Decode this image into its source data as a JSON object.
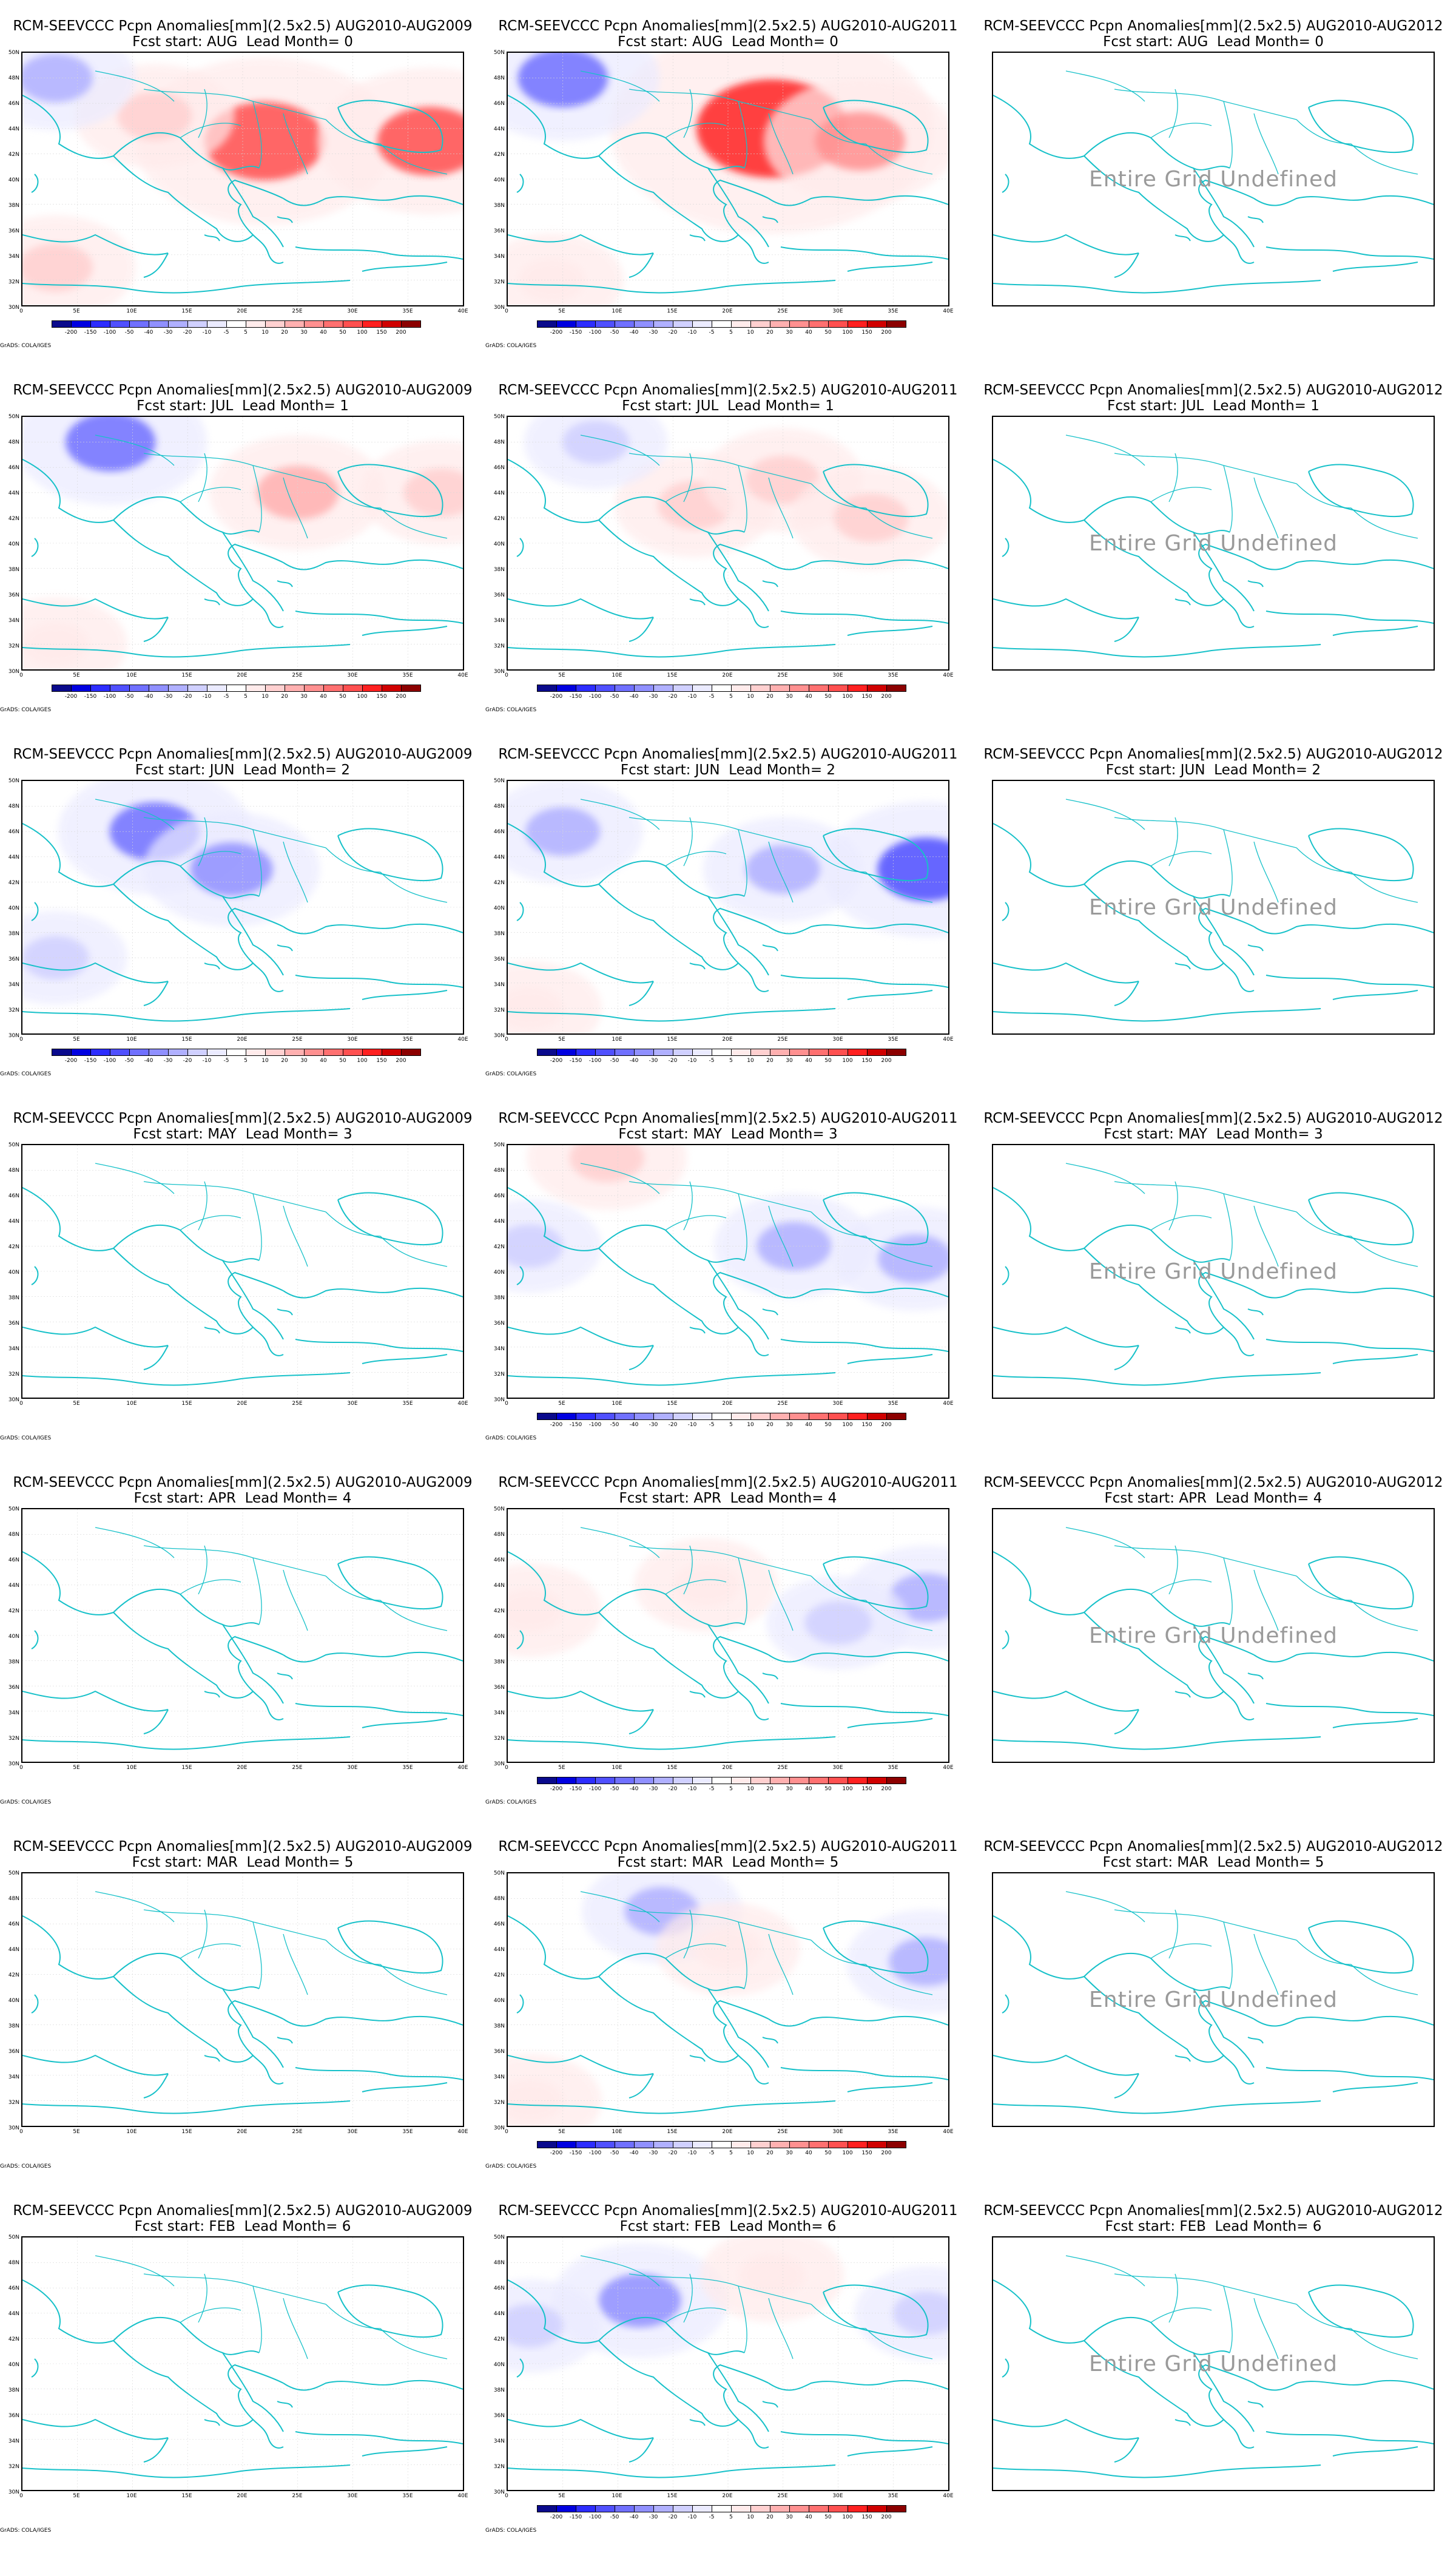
{
  "page": {
    "grads_credit": "GrADS: COLA/IGES"
  },
  "map": {
    "lat_labels": [
      "50N",
      "48N",
      "46N",
      "44N",
      "42N",
      "40N",
      "38N",
      "36N",
      "34N",
      "32N",
      "30N"
    ],
    "lon_labels": [
      "0",
      "5E",
      "10E",
      "15E",
      "20E",
      "25E",
      "30E",
      "35E",
      "40E"
    ],
    "lat_range": [
      30,
      50
    ],
    "lon_range": [
      0,
      40
    ],
    "coast_color": "#17c1c9",
    "undefined_text": "Entire Grid Undefined"
  },
  "colorbar": {
    "labels": [
      "-200",
      "-150",
      "-100",
      "-50",
      "-40",
      "-30",
      "-20",
      "-10",
      "-5",
      "5",
      "10",
      "20",
      "30",
      "40",
      "50",
      "100",
      "150",
      "200"
    ],
    "colors": [
      "#0a0a8c",
      "#0000e0",
      "#2d2dff",
      "#5050ff",
      "#7070ff",
      "#9090ff",
      "#b0b0ff",
      "#d0d0ff",
      "#ebebff",
      "#ffffff",
      "#ffebeb",
      "#ffd0d0",
      "#ffb0b0",
      "#ff9090",
      "#ff7070",
      "#ff5050",
      "#ff2020",
      "#d00000",
      "#8c0000"
    ]
  },
  "rows": [
    {
      "start": "AUG",
      "lead": "0"
    },
    {
      "start": "JUL",
      "lead": "1"
    },
    {
      "start": "JUN",
      "lead": "2"
    },
    {
      "start": "MAY",
      "lead": "3"
    },
    {
      "start": "APR",
      "lead": "4"
    },
    {
      "start": "MAR",
      "lead": "5"
    },
    {
      "start": "FEB",
      "lead": "6"
    }
  ],
  "columns": [
    {
      "comparison": "AUG2010-AUG2009"
    },
    {
      "comparison": "AUG2010-AUG2011"
    },
    {
      "comparison": "AUG2010-AUG2012"
    }
  ],
  "panels": [
    {
      "title1": "RCM-SEEVCCC Pcpn Anomalies[mm](2.5x2.5) AUG2010-AUG2009",
      "title2": "Fcst start: AUG  Lead Month= 0",
      "undefined": false,
      "has_colorbar": true,
      "anomalies": [
        {
          "lon": 22,
          "lat": 43,
          "value": 80
        },
        {
          "lon": 37,
          "lat": 43,
          "value": 60
        },
        {
          "lon": 12,
          "lat": 45,
          "value": 20
        },
        {
          "lon": 3,
          "lat": 33,
          "value": 20
        },
        {
          "lon": 3,
          "lat": 48,
          "value": -20
        }
      ]
    },
    {
      "title1": "RCM-SEEVCCC Pcpn Anomalies[mm](2.5x2.5) AUG2010-AUG2011",
      "title2": "Fcst start: AUG  Lead Month= 0",
      "undefined": false,
      "has_colorbar": true,
      "anomalies": [
        {
          "lon": 24,
          "lat": 44,
          "value": 120
        },
        {
          "lon": 32,
          "lat": 43,
          "value": 40
        },
        {
          "lon": 5,
          "lat": 48,
          "value": -40
        },
        {
          "lon": 4,
          "lat": 32,
          "value": 10
        }
      ]
    },
    {
      "title1": "RCM-SEEVCCC Pcpn Anomalies[mm](2.5x2.5) AUG2010-AUG2012",
      "title2": "Fcst start: AUG  Lead Month= 0",
      "undefined": true,
      "has_colorbar": false,
      "anomalies": []
    },
    {
      "title1": "RCM-SEEVCCC Pcpn Anomalies[mm](2.5x2.5) AUG2010-AUG2009",
      "title2": "Fcst start: JUL  Lead Month= 1",
      "undefined": false,
      "has_colorbar": true,
      "anomalies": [
        {
          "lon": 8,
          "lat": 48,
          "value": -40
        },
        {
          "lon": 25,
          "lat": 44,
          "value": 30
        },
        {
          "lon": 38,
          "lat": 44,
          "value": 20
        },
        {
          "lon": 3,
          "lat": 32,
          "value": 10
        }
      ]
    },
    {
      "title1": "RCM-SEEVCCC Pcpn Anomalies[mm](2.5x2.5) AUG2010-AUG2011",
      "title2": "Fcst start: JUL  Lead Month= 1",
      "undefined": false,
      "has_colorbar": true,
      "anomalies": [
        {
          "lon": 17,
          "lat": 43,
          "value": 20
        },
        {
          "lon": 25,
          "lat": 45,
          "value": 20
        },
        {
          "lon": 33,
          "lat": 42,
          "value": 20
        },
        {
          "lon": 8,
          "lat": 48,
          "value": -10
        }
      ]
    },
    {
      "title1": "RCM-SEEVCCC Pcpn Anomalies[mm](2.5x2.5) AUG2010-AUG2012",
      "title2": "Fcst start: JUL  Lead Month= 1",
      "undefined": true,
      "has_colorbar": false,
      "anomalies": []
    },
    {
      "title1": "RCM-SEEVCCC Pcpn Anomalies[mm](2.5x2.5) AUG2010-AUG2009",
      "title2": "Fcst start: JUN  Lead Month= 2",
      "undefined": false,
      "has_colorbar": true,
      "anomalies": [
        {
          "lon": 12,
          "lat": 46,
          "value": -40
        },
        {
          "lon": 19,
          "lat": 43,
          "value": -30
        },
        {
          "lon": 3,
          "lat": 36,
          "value": -10
        }
      ]
    },
    {
      "title1": "RCM-SEEVCCC Pcpn Anomalies[mm](2.5x2.5) AUG2010-AUG2011",
      "title2": "Fcst start: JUN  Lead Month= 2",
      "undefined": false,
      "has_colorbar": true,
      "anomalies": [
        {
          "lon": 38,
          "lat": 43,
          "value": -50
        },
        {
          "lon": 25,
          "lat": 43,
          "value": -20
        },
        {
          "lon": 5,
          "lat": 46,
          "value": -20
        },
        {
          "lon": 2,
          "lat": 32,
          "value": 10
        }
      ]
    },
    {
      "title1": "RCM-SEEVCCC Pcpn Anomalies[mm](2.5x2.5) AUG2010-AUG2012",
      "title2": "Fcst start: JUN  Lead Month= 2",
      "undefined": true,
      "has_colorbar": false,
      "anomalies": []
    },
    {
      "title1": "RCM-SEEVCCC Pcpn Anomalies[mm](2.5x2.5) AUG2010-AUG2009",
      "title2": "Fcst start: MAY  Lead Month= 3",
      "undefined": false,
      "has_colorbar": false,
      "anomalies": []
    },
    {
      "title1": "RCM-SEEVCCC Pcpn Anomalies[mm](2.5x2.5) AUG2010-AUG2011",
      "title2": "Fcst start: MAY  Lead Month= 3",
      "undefined": false,
      "has_colorbar": true,
      "anomalies": [
        {
          "lon": 26,
          "lat": 42,
          "value": -20
        },
        {
          "lon": 37,
          "lat": 41,
          "value": -20
        },
        {
          "lon": 9,
          "lat": 49,
          "value": 20
        },
        {
          "lon": 2,
          "lat": 42,
          "value": -10
        }
      ]
    },
    {
      "title1": "RCM-SEEVCCC Pcpn Anomalies[mm](2.5x2.5) AUG2010-AUG2012",
      "title2": "Fcst start: MAY  Lead Month= 3",
      "undefined": true,
      "has_colorbar": false,
      "anomalies": []
    },
    {
      "title1": "RCM-SEEVCCC Pcpn Anomalies[mm](2.5x2.5) AUG2010-AUG2009",
      "title2": "Fcst start: APR  Lead Month= 4",
      "undefined": false,
      "has_colorbar": false,
      "anomalies": []
    },
    {
      "title1": "RCM-SEEVCCC Pcpn Anomalies[mm](2.5x2.5) AUG2010-AUG2011",
      "title2": "Fcst start: APR  Lead Month= 4",
      "undefined": false,
      "has_colorbar": true,
      "anomalies": [
        {
          "lon": 38,
          "lat": 43,
          "value": -20
        },
        {
          "lon": 18,
          "lat": 44,
          "value": 10
        },
        {
          "lon": 30,
          "lat": 41,
          "value": -10
        },
        {
          "lon": 2,
          "lat": 42,
          "value": 10
        }
      ]
    },
    {
      "title1": "RCM-SEEVCCC Pcpn Anomalies[mm](2.5x2.5) AUG2010-AUG2012",
      "title2": "Fcst start: APR  Lead Month= 4",
      "undefined": true,
      "has_colorbar": false,
      "anomalies": []
    },
    {
      "title1": "RCM-SEEVCCC Pcpn Anomalies[mm](2.5x2.5) AUG2010-AUG2009",
      "title2": "Fcst start: MAR  Lead Month= 5",
      "undefined": false,
      "has_colorbar": false,
      "anomalies": []
    },
    {
      "title1": "RCM-SEEVCCC Pcpn Anomalies[mm](2.5x2.5) AUG2010-AUG2011",
      "title2": "Fcst start: MAR  Lead Month= 5",
      "undefined": false,
      "has_colorbar": true,
      "anomalies": [
        {
          "lon": 38,
          "lat": 43,
          "value": -20
        },
        {
          "lon": 14,
          "lat": 47,
          "value": -20
        },
        {
          "lon": 20,
          "lat": 44,
          "value": 10
        },
        {
          "lon": 2,
          "lat": 32,
          "value": 10
        }
      ]
    },
    {
      "title1": "RCM-SEEVCCC Pcpn Anomalies[mm](2.5x2.5) AUG2010-AUG2012",
      "title2": "Fcst start: MAR  Lead Month= 5",
      "undefined": true,
      "has_colorbar": false,
      "anomalies": []
    },
    {
      "title1": "RCM-SEEVCCC Pcpn Anomalies[mm](2.5x2.5) AUG2010-AUG2009",
      "title2": "Fcst start: FEB  Lead Month= 6",
      "undefined": false,
      "has_colorbar": false,
      "anomalies": []
    },
    {
      "title1": "RCM-SEEVCCC Pcpn Anomalies[mm](2.5x2.5) AUG2010-AUG2011",
      "title2": "Fcst start: FEB  Lead Month= 6",
      "undefined": false,
      "has_colorbar": true,
      "anomalies": [
        {
          "lon": 12,
          "lat": 45,
          "value": -30
        },
        {
          "lon": 38,
          "lat": 44,
          "value": -10
        },
        {
          "lon": 24,
          "lat": 47,
          "value": 10
        },
        {
          "lon": 2,
          "lat": 43,
          "value": -10
        }
      ]
    },
    {
      "title1": "RCM-SEEVCCC Pcpn Anomalies[mm](2.5x2.5) AUG2010-AUG2012",
      "title2": "Fcst start: FEB  Lead Month= 6",
      "undefined": true,
      "has_colorbar": false,
      "anomalies": []
    }
  ]
}
